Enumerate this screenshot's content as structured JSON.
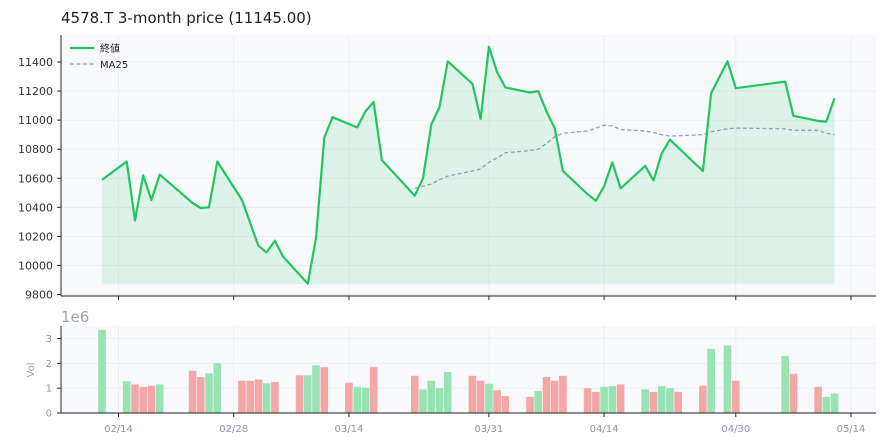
{
  "chart_data": [
    {
      "type": "line",
      "title": "4578.T  3-month price (11145.00)",
      "x_ticks": [
        "02/14",
        "02/28",
        "03/14",
        "03/31",
        "04/14",
        "04/30",
        "05/14"
      ],
      "y_ticks": [
        9800,
        10000,
        10200,
        10400,
        10600,
        10800,
        11000,
        11200,
        11400
      ],
      "ylim": [
        9800,
        11600
      ],
      "grid": true,
      "legend_position": "top-left",
      "series": [
        {
          "name": "終値",
          "color": "#22c55e",
          "style": "solid",
          "filled": true,
          "points": [
            [
              "2025-02-12",
              10590
            ],
            [
              "2025-02-15",
              10715
            ],
            [
              "2025-02-16",
              10310
            ],
            [
              "2025-02-17",
              10620
            ],
            [
              "2025-02-18",
              10450
            ],
            [
              "2025-02-19",
              10625
            ],
            [
              "2025-02-23",
              10430
            ],
            [
              "2025-02-24",
              10395
            ],
            [
              "2025-02-25",
              10400
            ],
            [
              "2025-02-26",
              10715
            ],
            [
              "2025-03-01",
              10450
            ],
            [
              "2025-03-03",
              10135
            ],
            [
              "2025-03-04",
              10090
            ],
            [
              "2025-03-05",
              10170
            ],
            [
              "2025-03-06",
              10060
            ],
            [
              "2025-03-09",
              9875
            ],
            [
              "2025-03-10",
              10190
            ],
            [
              "2025-03-11",
              10880
            ],
            [
              "2025-03-12",
              11020
            ],
            [
              "2025-03-15",
              10950
            ],
            [
              "2025-03-16",
              11060
            ],
            [
              "2025-03-17",
              11125
            ],
            [
              "2025-03-18",
              10725
            ],
            [
              "2025-03-22",
              10480
            ],
            [
              "2025-03-23",
              10600
            ],
            [
              "2025-03-24",
              10970
            ],
            [
              "2025-03-25",
              11090
            ],
            [
              "2025-03-26",
              11405
            ],
            [
              "2025-03-29",
              11250
            ],
            [
              "2025-03-30",
              11010
            ],
            [
              "2025-03-31",
              11505
            ],
            [
              "2025-04-01",
              11330
            ],
            [
              "2025-04-02",
              11225
            ],
            [
              "2025-04-05",
              11190
            ],
            [
              "2025-04-06",
              11200
            ],
            [
              "2025-04-07",
              11060
            ],
            [
              "2025-04-08",
              10945
            ],
            [
              "2025-04-09",
              10650
            ],
            [
              "2025-04-12",
              10490
            ],
            [
              "2025-04-13",
              10445
            ],
            [
              "2025-04-14",
              10545
            ],
            [
              "2025-04-15",
              10710
            ],
            [
              "2025-04-16",
              10530
            ],
            [
              "2025-04-19",
              10685
            ],
            [
              "2025-04-20",
              10585
            ],
            [
              "2025-04-21",
              10770
            ],
            [
              "2025-04-22",
              10865
            ],
            [
              "2025-04-26",
              10650
            ],
            [
              "2025-04-27",
              11185
            ],
            [
              "2025-04-29",
              11405
            ],
            [
              "2025-04-30",
              11220
            ],
            [
              "2025-05-06",
              11265
            ],
            [
              "2025-05-07",
              11030
            ],
            [
              "2025-05-10",
              10995
            ],
            [
              "2025-05-11",
              10990
            ],
            [
              "2025-05-12",
              11150
            ]
          ]
        },
        {
          "name": "MA25",
          "color": "#8fa0b8",
          "style": "dashed",
          "filled": false,
          "points": [
            [
              "2025-03-22",
              10530
            ],
            [
              "2025-03-23",
              10545
            ],
            [
              "2025-03-24",
              10560
            ],
            [
              "2025-03-25",
              10590
            ],
            [
              "2025-03-26",
              10615
            ],
            [
              "2025-03-29",
              10650
            ],
            [
              "2025-03-30",
              10665
            ],
            [
              "2025-03-31",
              10710
            ],
            [
              "2025-04-01",
              10740
            ],
            [
              "2025-04-02",
              10775
            ],
            [
              "2025-04-05",
              10790
            ],
            [
              "2025-04-06",
              10800
            ],
            [
              "2025-04-07",
              10840
            ],
            [
              "2025-04-08",
              10885
            ],
            [
              "2025-04-09",
              10910
            ],
            [
              "2025-04-12",
              10925
            ],
            [
              "2025-04-13",
              10945
            ],
            [
              "2025-04-14",
              10965
            ],
            [
              "2025-04-15",
              10960
            ],
            [
              "2025-04-16",
              10935
            ],
            [
              "2025-04-19",
              10925
            ],
            [
              "2025-04-20",
              10915
            ],
            [
              "2025-04-21",
              10900
            ],
            [
              "2025-04-22",
              10890
            ],
            [
              "2025-04-26",
              10900
            ],
            [
              "2025-04-27",
              10920
            ],
            [
              "2025-04-29",
              10940
            ],
            [
              "2025-04-30",
              10945
            ],
            [
              "2025-05-06",
              10940
            ],
            [
              "2025-05-07",
              10930
            ],
            [
              "2025-05-10",
              10930
            ],
            [
              "2025-05-11",
              10910
            ],
            [
              "2025-05-12",
              10900
            ]
          ]
        }
      ]
    },
    {
      "type": "bar",
      "ylabel": "Vol",
      "scale_label": "1e6",
      "ylim": [
        0,
        3.5
      ],
      "y_ticks": [
        0,
        1,
        2,
        3
      ],
      "x_ticks": [
        "02/14",
        "02/28",
        "03/14",
        "03/31",
        "04/14",
        "04/30",
        "05/14"
      ],
      "up_color": "#98e2b3",
      "down_color": "#f4a7a7",
      "bars": [
        [
          "2025-02-12",
          3.35,
          "up"
        ],
        [
          "2025-02-15",
          1.28,
          "up"
        ],
        [
          "2025-02-16",
          1.15,
          "down"
        ],
        [
          "2025-02-17",
          1.05,
          "down"
        ],
        [
          "2025-02-18",
          1.1,
          "down"
        ],
        [
          "2025-02-19",
          1.15,
          "up"
        ],
        [
          "2025-02-23",
          1.7,
          "down"
        ],
        [
          "2025-02-24",
          1.45,
          "down"
        ],
        [
          "2025-02-25",
          1.6,
          "up"
        ],
        [
          "2025-02-26",
          2.0,
          "up"
        ],
        [
          "2025-03-01",
          1.3,
          "down"
        ],
        [
          "2025-03-02",
          1.3,
          "down"
        ],
        [
          "2025-03-03",
          1.35,
          "down"
        ],
        [
          "2025-03-04",
          1.2,
          "up"
        ],
        [
          "2025-03-05",
          1.25,
          "down"
        ],
        [
          "2025-03-08",
          1.52,
          "down"
        ],
        [
          "2025-03-09",
          1.52,
          "up"
        ],
        [
          "2025-03-10",
          1.92,
          "up"
        ],
        [
          "2025-03-11",
          1.85,
          "down"
        ],
        [
          "2025-03-14",
          1.22,
          "down"
        ],
        [
          "2025-03-15",
          1.05,
          "up"
        ],
        [
          "2025-03-16",
          1.02,
          "up"
        ],
        [
          "2025-03-17",
          1.85,
          "down"
        ],
        [
          "2025-03-22",
          1.5,
          "down"
        ],
        [
          "2025-03-23",
          0.95,
          "up"
        ],
        [
          "2025-03-24",
          1.3,
          "up"
        ],
        [
          "2025-03-25",
          1.0,
          "up"
        ],
        [
          "2025-03-26",
          1.65,
          "up"
        ],
        [
          "2025-03-29",
          1.5,
          "down"
        ],
        [
          "2025-03-30",
          1.3,
          "down"
        ],
        [
          "2025-03-31",
          1.18,
          "up"
        ],
        [
          "2025-04-01",
          0.92,
          "down"
        ],
        [
          "2025-04-02",
          0.68,
          "down"
        ],
        [
          "2025-04-05",
          0.65,
          "down"
        ],
        [
          "2025-04-06",
          0.88,
          "up"
        ],
        [
          "2025-04-07",
          1.45,
          "down"
        ],
        [
          "2025-04-08",
          1.3,
          "down"
        ],
        [
          "2025-04-09",
          1.5,
          "down"
        ],
        [
          "2025-04-12",
          1.0,
          "down"
        ],
        [
          "2025-04-13",
          0.85,
          "down"
        ],
        [
          "2025-04-14",
          1.05,
          "up"
        ],
        [
          "2025-04-15",
          1.08,
          "up"
        ],
        [
          "2025-04-16",
          1.15,
          "down"
        ],
        [
          "2025-04-19",
          0.95,
          "up"
        ],
        [
          "2025-04-20",
          0.85,
          "down"
        ],
        [
          "2025-04-21",
          1.08,
          "up"
        ],
        [
          "2025-04-22",
          1.0,
          "up"
        ],
        [
          "2025-04-23",
          0.85,
          "down"
        ],
        [
          "2025-04-26",
          1.1,
          "down"
        ],
        [
          "2025-04-27",
          2.58,
          "up"
        ],
        [
          "2025-04-29",
          2.72,
          "up"
        ],
        [
          "2025-04-30",
          1.3,
          "down"
        ],
        [
          "2025-05-06",
          2.3,
          "up"
        ],
        [
          "2025-05-07",
          1.58,
          "down"
        ],
        [
          "2025-05-10",
          1.05,
          "down"
        ],
        [
          "2025-05-11",
          0.65,
          "up"
        ],
        [
          "2025-05-12",
          0.78,
          "up"
        ]
      ]
    }
  ]
}
